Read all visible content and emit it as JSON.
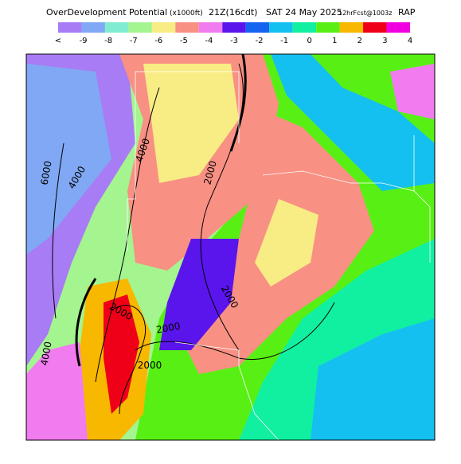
{
  "header": {
    "title": "OverDevelopment Potential",
    "units": "(x1000ft)",
    "time": "21Z(16cdt)",
    "date": "SAT 24 May 2025",
    "forecast": "12hrFcst@1003z",
    "model": "RAP"
  },
  "legend": {
    "labels": [
      "<",
      "-9",
      "-8",
      "-7",
      "-6",
      "-5",
      "-4",
      "-3",
      "-2",
      "-1",
      "0",
      "1",
      "2",
      "3",
      "4"
    ],
    "colors": [
      "#a87cf4",
      "#80a8f4",
      "#80ecd0",
      "#a4f490",
      "#f8ec84",
      "#f89084",
      "#f07cf0",
      "#5a14ec",
      "#1464f0",
      "#14c0f0",
      "#10f0a0",
      "#58f014",
      "#f8b800",
      "#f00018",
      "#f000e0"
    ]
  },
  "map": {
    "contour_labels": [
      "6000",
      "4000",
      "2000",
      "4000",
      "2000",
      "2000",
      "4000",
      "2000",
      "2000"
    ]
  }
}
